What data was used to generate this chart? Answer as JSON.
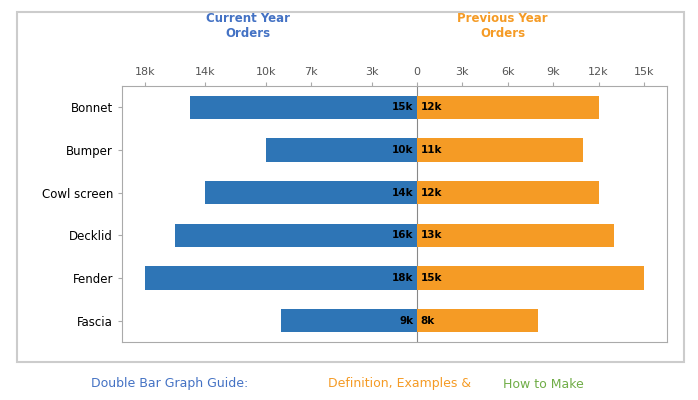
{
  "categories": [
    "Bonnet",
    "Bumper",
    "Cowl screen",
    "Decklid",
    "Fender",
    "Fascia"
  ],
  "current_year": [
    15,
    10,
    14,
    16,
    18,
    9
  ],
  "previous_year": [
    12,
    11,
    12,
    13,
    15,
    8
  ],
  "blue_color": "#2E75B6",
  "orange_color": "#F59B25",
  "border_color": "#CCCCCC",
  "header_blue": "#4472C4",
  "header_orange": "#F59B25",
  "footer_blue": "#4472C4",
  "footer_orange": "#F59B25",
  "footer_green": "#70AD47",
  "xtick_positions": [
    -18,
    -14,
    -10,
    -7,
    -3,
    0,
    3,
    6,
    9,
    12,
    15
  ],
  "xtick_labels": [
    "18k",
    "14k",
    "10k",
    "7k",
    "3k",
    "0",
    "3k",
    "6k",
    "9k",
    "12k",
    "15k"
  ],
  "current_year_label": "Current Year\nOrders",
  "previous_year_label": "Previous Year\nOrders",
  "footer_part1": "Double Bar Graph Guide: ",
  "footer_part2": "Definition, Examples & ",
  "footer_part3": "How to Make",
  "bar_height": 0.55,
  "xlim_left": -19.5,
  "xlim_right": 16.5
}
